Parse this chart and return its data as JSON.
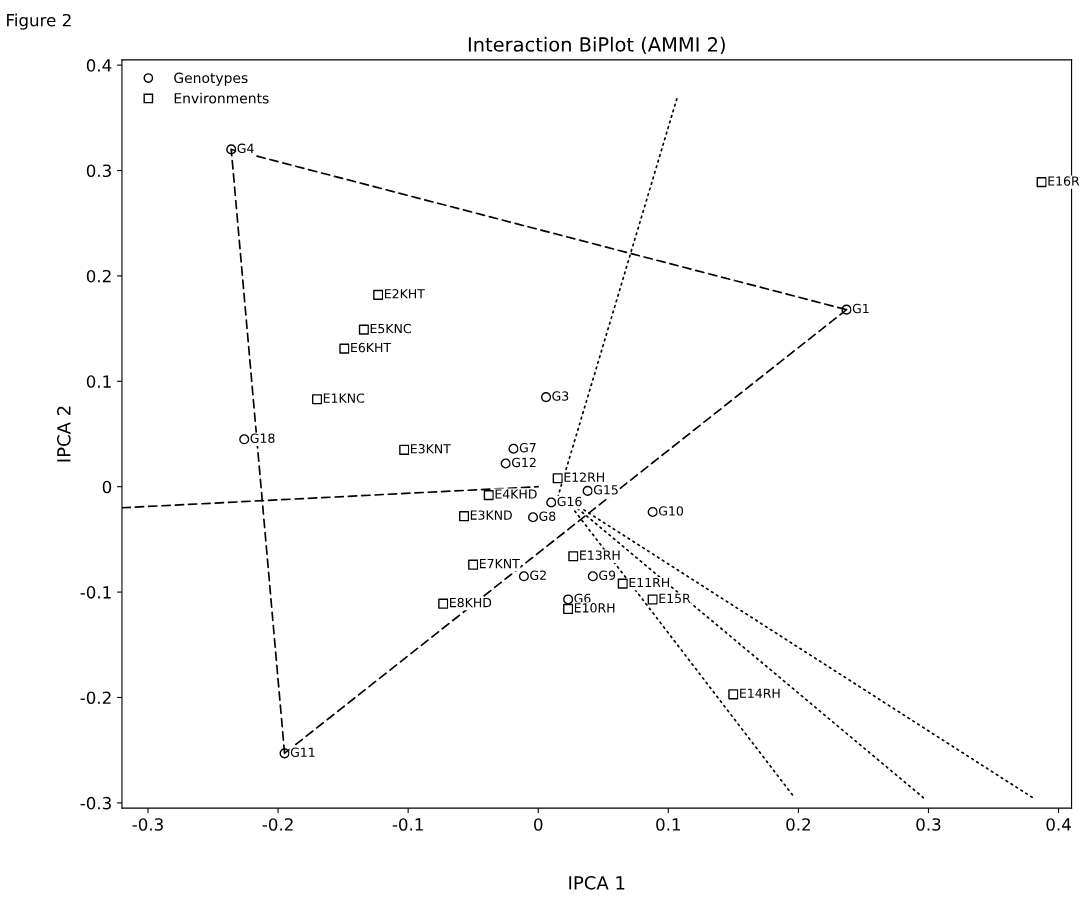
{
  "chart_data": {
    "type": "scatter",
    "title": "Interaction BiPlot (AMMI 2)",
    "xlabel": "IPCA 1",
    "ylabel": "IPCA 2",
    "annotations": [
      "Figure 2"
    ],
    "xlim": [
      -0.32,
      0.41
    ],
    "ylim": [
      -0.305,
      0.405
    ],
    "xticks": [
      -0.3,
      -0.2,
      -0.1,
      0,
      0.1,
      0.2,
      0.3,
      0.4
    ],
    "yticks": [
      -0.3,
      -0.2,
      -0.1,
      0,
      0.1,
      0.2,
      0.3,
      0.4
    ],
    "grid": false,
    "legend": "top left",
    "series": [
      {
        "name": "Genotypes",
        "marker": "circle",
        "color": "#000000",
        "x": [
          -0.236,
          0.237,
          -0.226,
          -0.195,
          0.006,
          -0.019,
          -0.025,
          0.038,
          -0.004,
          0.01,
          -0.011,
          0.088,
          0.042,
          0.023
        ],
        "values": [
          0.32,
          0.168,
          0.045,
          -0.253,
          0.085,
          0.036,
          0.022,
          -0.004,
          -0.029,
          -0.015,
          -0.085,
          -0.024,
          -0.085,
          -0.107
        ],
        "value_labels": [
          "G4",
          "G1",
          "G18",
          "G11",
          "G3",
          "G7",
          "G12",
          "G15",
          "G8",
          "G16",
          "G2",
          "G10",
          "G9",
          "G6"
        ]
      },
      {
        "name": "Environments",
        "marker": "square",
        "color": "#000000",
        "x": [
          -0.123,
          -0.134,
          -0.149,
          -0.17,
          -0.103,
          -0.038,
          -0.057,
          -0.05,
          -0.073,
          0.015,
          0.027,
          0.065,
          0.023,
          0.088,
          0.15,
          0.387
        ],
        "values": [
          0.182,
          0.149,
          0.131,
          0.083,
          0.035,
          -0.008,
          -0.028,
          -0.074,
          -0.111,
          0.008,
          -0.066,
          -0.092,
          -0.116,
          -0.107,
          -0.197,
          0.289
        ],
        "value_labels": [
          "E2KHT",
          "E5KNC",
          "E6KHT",
          "E1KNC",
          "E3KNT",
          "E4KHD",
          "E3KND",
          "E7KNT",
          "E8KHD",
          "E12RH",
          "E13RH",
          "E11RH",
          "E10RH",
          "E15R",
          "E14RH",
          "E16R"
        ]
      },
      {
        "type": "line",
        "line_style": "dashed",
        "color": "#000000",
        "x": [
          -0.236,
          0.237
        ],
        "values": [
          0.32,
          0.168
        ]
      },
      {
        "type": "line",
        "line_style": "dashed",
        "color": "#000000",
        "x": [
          0.237,
          -0.195
        ],
        "values": [
          0.168,
          -0.253
        ]
      },
      {
        "type": "line",
        "line_style": "dashed",
        "color": "#000000",
        "x": [
          -0.195,
          -0.236
        ],
        "values": [
          -0.253,
          0.32
        ]
      },
      {
        "type": "line",
        "line_style": "dashed",
        "color": "#000000",
        "x": [
          -0.32,
          0.0
        ],
        "values": [
          -0.02,
          0.0
        ]
      },
      {
        "type": "line",
        "line_style": "dotted",
        "color": "#000000",
        "x": [
          0.015,
          0.107
        ],
        "values": [
          -0.01,
          0.37
        ]
      },
      {
        "type": "line",
        "line_style": "dotted",
        "color": "#000000",
        "x": [
          0.02,
          0.38
        ],
        "values": [
          -0.01,
          -0.295
        ]
      },
      {
        "type": "line",
        "line_style": "dotted",
        "color": "#000000",
        "x": [
          0.02,
          0.296
        ],
        "values": [
          -0.01,
          -0.295
        ]
      },
      {
        "type": "line",
        "line_style": "dotted",
        "color": "#000000",
        "x": [
          0.02,
          0.197
        ],
        "values": [
          -0.01,
          -0.295
        ]
      }
    ]
  }
}
